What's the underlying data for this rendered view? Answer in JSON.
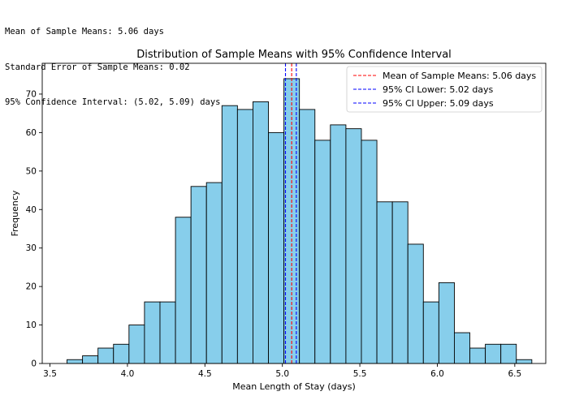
{
  "output_lines": [
    "Mean of Sample Means: 5.06 days",
    "Standard Error of Sample Means: 0.02",
    "95% Confidence Interval: (5.02, 5.09) days"
  ],
  "chart_data": {
    "type": "bar",
    "title": "Distribution of Sample Means with 95% Confidence Interval",
    "xlabel": "Mean Length of Stay (days)",
    "ylabel": "Frequency",
    "xlim": [
      3.45,
      6.7
    ],
    "ylim": [
      0,
      78
    ],
    "x_ticks": [
      3.5,
      4.0,
      4.5,
      5.0,
      5.5,
      6.0,
      6.5
    ],
    "x_tick_labels": [
      "3.5",
      "4.0",
      "4.5",
      "5.0",
      "5.5",
      "6.0",
      "6.5"
    ],
    "y_ticks": [
      0,
      10,
      20,
      30,
      40,
      50,
      60,
      70
    ],
    "y_tick_labels": [
      "0",
      "10",
      "20",
      "30",
      "40",
      "50",
      "60",
      "70"
    ],
    "grid": false,
    "bins": {
      "edges": [
        3.61,
        3.71,
        3.81,
        3.91,
        4.01,
        4.11,
        4.21,
        4.31,
        4.41,
        4.51,
        4.61,
        4.71,
        4.81,
        4.91,
        5.01,
        5.11,
        5.21,
        5.31,
        5.41,
        5.51,
        5.61,
        5.71,
        5.81,
        5.91,
        6.01,
        6.11,
        6.21,
        6.31,
        6.41,
        6.51
      ],
      "counts": [
        1,
        2,
        4,
        5,
        10,
        16,
        16,
        38,
        46,
        47,
        67,
        66,
        68,
        60,
        74,
        66,
        58,
        62,
        61,
        58,
        42,
        42,
        31,
        16,
        21,
        8,
        4,
        5,
        5,
        1
      ]
    },
    "bar_color": "#87CEEB",
    "bar_edge_color": "#000000",
    "reference_lines": [
      {
        "label": "Mean of Sample Means: 5.06 days",
        "x": 5.06,
        "color": "#ff0000"
      },
      {
        "label": "95% CI Lower: 5.02 days",
        "x": 5.02,
        "color": "#0000ff"
      },
      {
        "label": "95% CI Upper: 5.09 days",
        "x": 5.09,
        "color": "#0000ff"
      }
    ],
    "legend_position": "upper right"
  }
}
